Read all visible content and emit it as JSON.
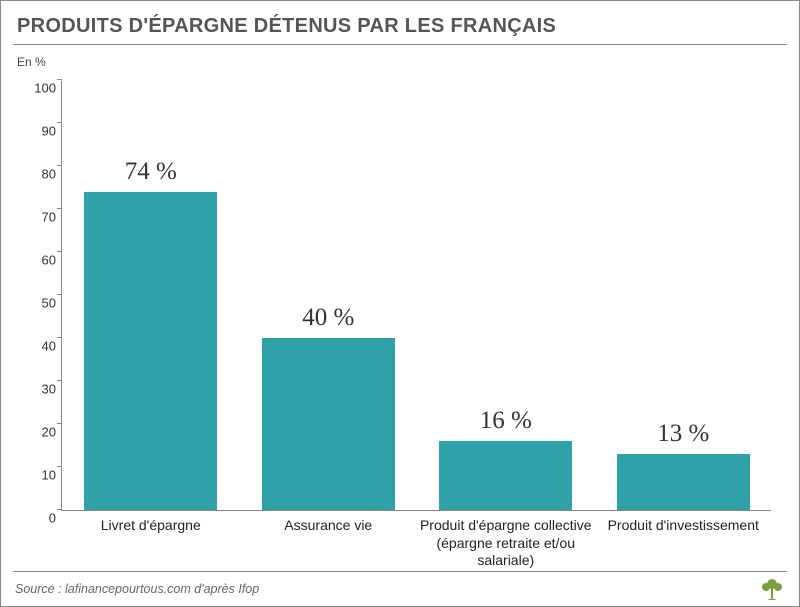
{
  "title": "PRODUITS D'ÉPARGNE DÉTENUS PAR LES FRANÇAIS",
  "ylabel": "En %",
  "source": "Source : lafinancepourtous.com d'après Ifop",
  "chart": {
    "type": "bar",
    "background_color": "#ffffff",
    "axis_color": "#888888",
    "bar_color": "#2ea2a8",
    "title_color": "#555555",
    "title_fontsize": 20,
    "label_fontsize": 14,
    "value_label_fontsize": 25,
    "tick_fontsize": 13,
    "ylim": [
      0,
      100
    ],
    "ytick_step": 10,
    "yticks": [
      0,
      10,
      20,
      30,
      40,
      50,
      60,
      70,
      80,
      90,
      100
    ],
    "bar_width": 0.75,
    "categories": [
      "Livret d'épargne",
      "Assurance vie",
      "Produit d'épargne collective\n(épargne retraite et/ou salariale)",
      "Produit d'investissement"
    ],
    "values": [
      74,
      40,
      16,
      13
    ],
    "value_labels": [
      "74 %",
      "40 %",
      "16 %",
      "13 %"
    ]
  },
  "logo_color": "#7aa33d"
}
